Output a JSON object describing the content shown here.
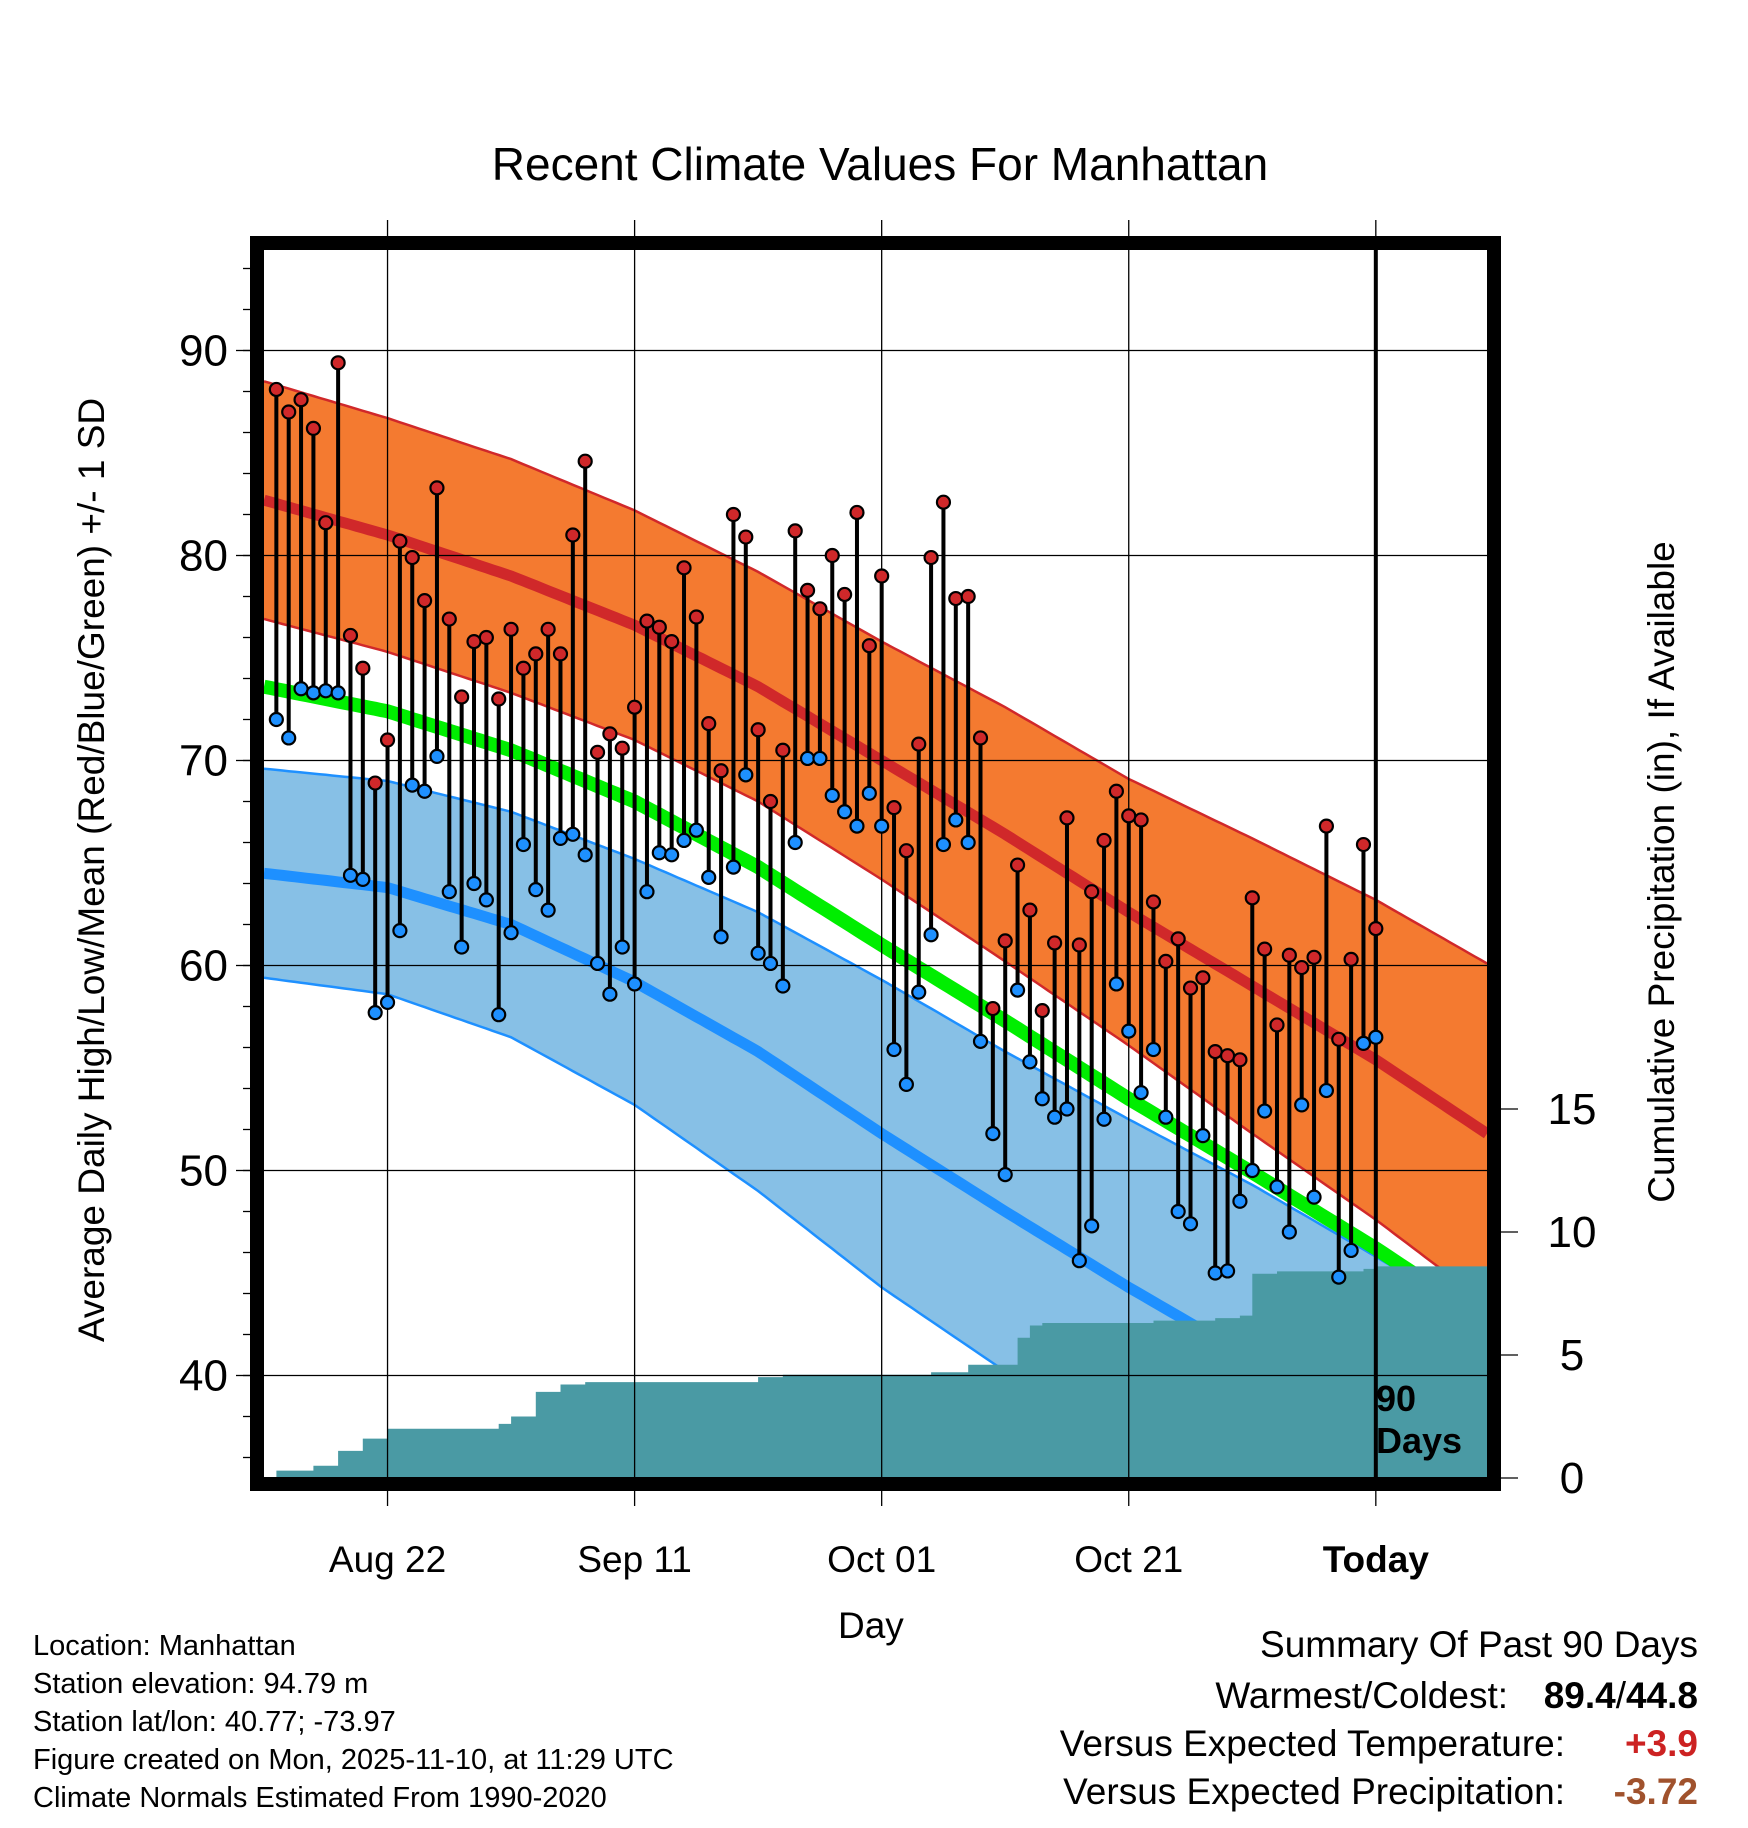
{
  "title": "Recent Climate Values For Manhattan",
  "ylabel_left": "Average Daily High/Low/Mean (Red/Blue/Green) +/- 1 SD",
  "ylabel_right": "Cumulative Precipitation (in), If Available",
  "xlabel": "Day",
  "today_label": "90\nDays",
  "info": {
    "location": "Location: Manhattan",
    "elevation": "Station elevation: 94.79 m",
    "latlon": "Station lat/lon: 40.77; -73.97",
    "created": "Figure created on Mon, 2025-11-10, at 11:29 UTC",
    "normals": "Climate Normals Estimated From 1990-2020"
  },
  "summary": {
    "heading": "Summary Of Past 90 Days",
    "warmest_label": "Warmest/Coldest:",
    "warmest_value": "89.4",
    "slash": "/",
    "coldest_value": "44.8",
    "temp_label": "Versus Expected Temperature:",
    "temp_value": "+3.9",
    "precip_label": "Versus Expected Precipitation:",
    "precip_value": "-3.72"
  },
  "colors": {
    "high_band": "#f47a30",
    "high_line": "#d0282a",
    "low_band": "#87c0e6",
    "low_line": "#1e90ff",
    "mean_line": "#00ee00",
    "precip": "#4a9aa4",
    "temp_value": "#cc2222",
    "precip_value": "#a0522d"
  },
  "chart_data": {
    "type": "line",
    "x_range_days": [
      -90,
      9
    ],
    "ylim": [
      35,
      95
    ],
    "y_ticks": [
      40,
      50,
      60,
      70,
      80,
      90
    ],
    "y2lim": [
      0,
      50
    ],
    "y2_ticks": [
      0,
      5,
      10,
      15
    ],
    "x_ticks": [
      {
        "day": -80,
        "label": "Aug 22",
        "bold": false
      },
      {
        "day": -60,
        "label": "Sep 11",
        "bold": false
      },
      {
        "day": -40,
        "label": "Oct 01",
        "bold": false
      },
      {
        "day": -20,
        "label": "Oct 21",
        "bold": false
      },
      {
        "day": 0,
        "label": "Today",
        "bold": true
      }
    ],
    "normals": {
      "days": [
        -90,
        -80,
        -70,
        -60,
        -50,
        -40,
        -30,
        -20,
        -10,
        0,
        9
      ],
      "high_mean": [
        82.7,
        81.0,
        79.0,
        76.6,
        73.6,
        70.0,
        66.4,
        62.6,
        59.0,
        55.4,
        51.8
      ],
      "high_sd": [
        5.8,
        5.7,
        5.7,
        5.6,
        5.6,
        5.8,
        6.2,
        6.5,
        7.2,
        7.8,
        8.3
      ],
      "low_mean": [
        64.5,
        63.8,
        62.0,
        59.2,
        55.8,
        51.8,
        48.0,
        44.3,
        40.8,
        37.0,
        33.5
      ],
      "low_sd": [
        5.1,
        5.2,
        5.5,
        6.0,
        6.8,
        7.5,
        7.8,
        8.2,
        8.5,
        8.8,
        9.0
      ],
      "mean": [
        73.6,
        72.4,
        70.5,
        68.0,
        64.8,
        61.0,
        57.3,
        53.5,
        49.9,
        46.2,
        42.6
      ]
    },
    "series": [
      {
        "name": "Daily High",
        "values": [
          88.1,
          87.0,
          87.6,
          86.2,
          81.6,
          89.4,
          76.1,
          74.5,
          68.9,
          71.0,
          80.7,
          79.9,
          77.8,
          83.3,
          76.9,
          73.1,
          75.8,
          76.0,
          73.0,
          76.4,
          74.5,
          75.2,
          76.4,
          75.2,
          81.0,
          84.6,
          70.4,
          71.3,
          70.6,
          72.6,
          76.8,
          76.5,
          75.8,
          79.4,
          77.0,
          71.8,
          69.5,
          82.0,
          80.9,
          71.5,
          68.0,
          70.5,
          81.2,
          78.3,
          77.4,
          80.0,
          78.1,
          82.1,
          75.6,
          79.0,
          67.7,
          65.6,
          70.8,
          79.9,
          82.6,
          77.9,
          78.0,
          71.1,
          57.9,
          61.2,
          64.9,
          62.7,
          57.8,
          61.1,
          67.2,
          61.0,
          63.6,
          66.1,
          68.5,
          67.3,
          67.1,
          63.1,
          60.2,
          61.3,
          58.9,
          59.4,
          55.8,
          55.6,
          55.4,
          63.3,
          60.8,
          57.1,
          60.5,
          59.9,
          60.4,
          66.8,
          56.4,
          60.3,
          65.9,
          61.8
        ]
      },
      {
        "name": "Daily Low",
        "values": [
          72.0,
          71.1,
          73.5,
          73.3,
          73.4,
          73.3,
          64.4,
          64.2,
          57.7,
          58.2,
          61.7,
          68.8,
          68.5,
          70.2,
          63.6,
          60.9,
          64.0,
          63.2,
          57.6,
          61.6,
          65.9,
          63.7,
          62.7,
          66.2,
          66.4,
          65.4,
          60.1,
          58.6,
          60.9,
          59.1,
          63.6,
          65.5,
          65.4,
          66.1,
          66.6,
          64.3,
          61.4,
          64.8,
          69.3,
          60.6,
          60.1,
          59.0,
          66.0,
          70.1,
          70.1,
          68.3,
          67.5,
          66.8,
          68.4,
          66.8,
          55.9,
          54.2,
          58.7,
          61.5,
          65.9,
          67.1,
          66.0,
          56.3,
          51.8,
          49.8,
          58.8,
          55.3,
          53.5,
          52.6,
          53.0,
          45.6,
          47.3,
          52.5,
          59.1,
          56.8,
          53.8,
          55.9,
          52.6,
          48.0,
          47.4,
          51.7,
          45.0,
          45.1,
          48.5,
          50.0,
          52.9,
          49.2,
          47.0,
          53.2,
          48.7,
          53.9,
          44.8,
          46.1,
          56.2,
          56.5
        ]
      }
    ],
    "precip_cumulative": {
      "days": [
        -90,
        -89,
        -86,
        -84,
        -82,
        -80,
        -78,
        -71,
        -70,
        -68,
        -66,
        -64,
        -60,
        -52,
        -50,
        -48,
        -43,
        -39,
        -36,
        -33,
        -29,
        -28,
        -27,
        -25,
        -23,
        -18,
        -13,
        -11,
        -10,
        -8,
        -6,
        -1,
        0,
        9
      ],
      "values": [
        0.0,
        0.3,
        0.5,
        1.1,
        1.6,
        2.0,
        2.0,
        2.2,
        2.5,
        3.5,
        3.8,
        3.9,
        3.9,
        3.9,
        4.1,
        4.2,
        4.2,
        4.2,
        4.3,
        4.6,
        5.7,
        6.2,
        6.3,
        6.3,
        6.3,
        6.4,
        6.5,
        6.6,
        8.3,
        8.4,
        8.4,
        8.5,
        8.6,
        8.6
      ]
    }
  }
}
